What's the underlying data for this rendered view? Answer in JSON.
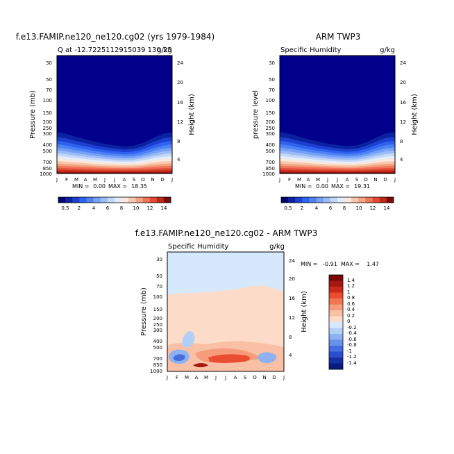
{
  "chart_data": [
    {
      "type": "heatmap",
      "panel": "model",
      "title": "f.e13.FAMIP.ne120_ne120.cg02 (yrs 1979-1984)",
      "subtitle_left": "Q at -12.7225112915039 130.25",
      "subtitle_right": "g/kg",
      "ylabel": "Pressure (mb)",
      "ylabel_right": "Height (km)",
      "months": [
        "J",
        "F",
        "M",
        "A",
        "M",
        "J",
        "J",
        "A",
        "S",
        "O",
        "N",
        "D",
        "J"
      ],
      "pressure_ticks": [
        "30",
        "50",
        "70",
        "100",
        "150",
        "200",
        "250",
        "300",
        "400",
        "500",
        "700",
        "850",
        "1000"
      ],
      "height_ticks": [
        "24",
        "20",
        "16",
        "12",
        "8",
        "4"
      ],
      "min_label": "MIN =",
      "min_value": "0.00",
      "max_label": "MAX =",
      "max_value": "18.35",
      "min": 0.0,
      "max": 18.35,
      "moisture_top_km": [
        10.8,
        10.3,
        9.5,
        8.9,
        8.2,
        7.7,
        7.3,
        7.0,
        7.2,
        8.0,
        9.2,
        10.3,
        10.8
      ],
      "surface_value": 18.35
    },
    {
      "type": "heatmap",
      "panel": "observed",
      "title": "ARM TWP3",
      "subtitle_left": "Specific Humidity",
      "subtitle_right": "g/kg",
      "ylabel": "pressure level",
      "ylabel_right": "Height (km)",
      "months": [
        "J",
        "F",
        "M",
        "A",
        "M",
        "J",
        "J",
        "A",
        "S",
        "O",
        "N",
        "D",
        "J"
      ],
      "pressure_ticks": [
        "30",
        "50",
        "70",
        "100",
        "150",
        "200",
        "250",
        "300",
        "400",
        "500",
        "700",
        "850",
        "1000"
      ],
      "height_ticks": [
        "24",
        "20",
        "16",
        "12",
        "8",
        "4"
      ],
      "min_label": "MIN =",
      "min_value": "0.00",
      "max_label": "MAX =",
      "max_value": "19.31",
      "min": 0.0,
      "max": 19.31,
      "moisture_top_km": [
        10.8,
        10.3,
        9.6,
        8.9,
        8.3,
        7.8,
        7.4,
        7.1,
        7.3,
        8.1,
        9.3,
        10.4,
        10.8
      ],
      "surface_value": 19.31
    },
    {
      "type": "heatmap",
      "panel": "difference",
      "title": "f.e13.FAMIP.ne120_ne120.cg02 - ARM TWP3",
      "subtitle_left": "Specific Humidity",
      "subtitle_right": "g/kg",
      "ylabel": "Pressure (mb)",
      "ylabel_right": "Height (km)",
      "months": [
        "J",
        "F",
        "M",
        "A",
        "M",
        "J",
        "J",
        "A",
        "S",
        "O",
        "N",
        "D",
        "J"
      ],
      "pressure_ticks": [
        "30",
        "50",
        "70",
        "100",
        "150",
        "200",
        "250",
        "300",
        "400",
        "500",
        "700",
        "850",
        "1000"
      ],
      "height_ticks": [
        "24",
        "20",
        "16",
        "12",
        "8",
        "4"
      ],
      "minmax_text": "MIN =   -0.91  MAX =    1.47",
      "min": -0.91,
      "max": 1.47
    }
  ],
  "colorbar_abs": {
    "labels": [
      "0.5",
      "2",
      "4",
      "6",
      "8",
      "10",
      "12",
      "14"
    ],
    "levels": [
      0.5,
      1,
      2,
      3,
      4,
      5,
      6,
      7,
      8,
      9,
      10,
      11,
      12,
      13,
      14
    ],
    "colors": [
      "#08006e",
      "#0a22a0",
      "#1c3fd0",
      "#2f62f0",
      "#4d82f5",
      "#74a0f7",
      "#9cbcf7",
      "#c3d7f8",
      "#e4eefa",
      "#fbe8dc",
      "#f8c8ad",
      "#f5a282",
      "#ef7658",
      "#e24a33",
      "#c4261a",
      "#7a0d0a"
    ]
  },
  "colorbar_diff": {
    "labels": [
      "1.4",
      "1.2",
      "1",
      "0.8",
      "0.6",
      "0.4",
      "0.2",
      "0",
      "-0.2",
      "-0.4",
      "-0.6",
      "-0.8",
      "-1",
      "-1.2",
      "-1.4"
    ],
    "colors": [
      "#7a0403",
      "#a31a10",
      "#cb2a1a",
      "#ea4d2f",
      "#f27652",
      "#f69c7c",
      "#f9c0a5",
      "#fcdcc8",
      "#d6e8fb",
      "#b3cff7",
      "#8db1f2",
      "#6890ec",
      "#466de0",
      "#2b4dc9",
      "#1530a6",
      "#0b1b7d"
    ]
  },
  "colors": {
    "base_blue": "#00008a",
    "diff_upper": "#d6e8fb",
    "diff_lower": "#fcdcc8"
  }
}
